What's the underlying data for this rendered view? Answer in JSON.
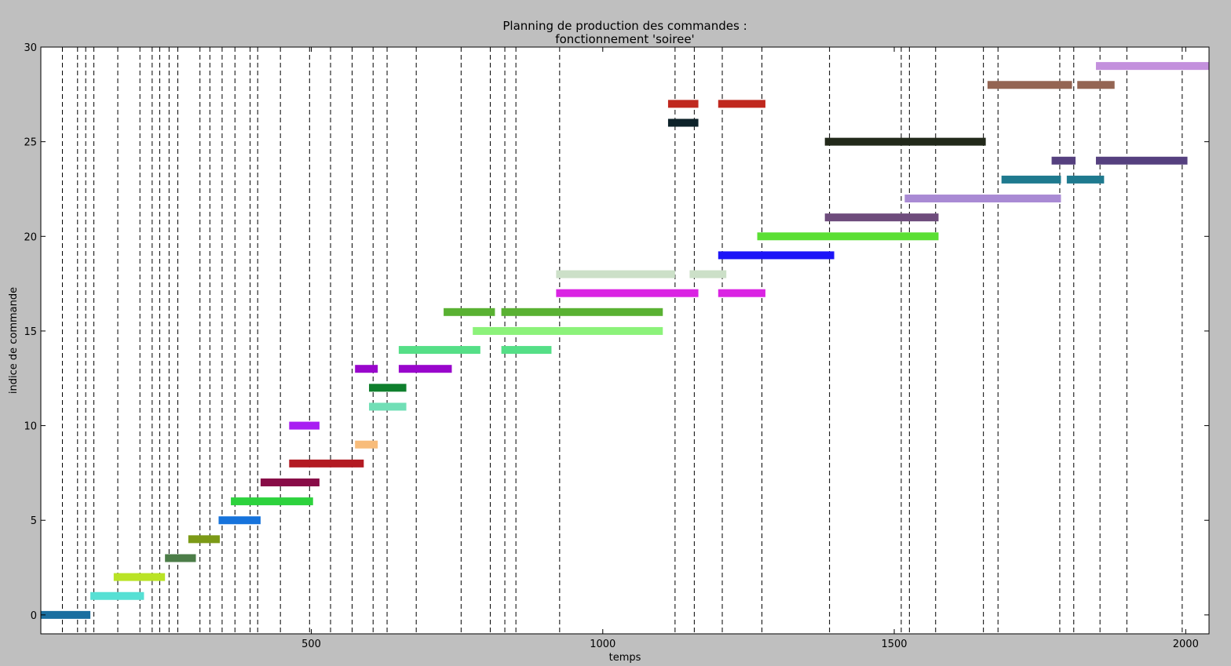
{
  "chart_data": {
    "type": "gantt",
    "title": [
      "Planning de production des commandes :",
      "fonctionnement 'soiree'"
    ],
    "xlabel": "temps",
    "ylabel": "indice de commande",
    "xlim": [
      36,
      2040
    ],
    "ylim": [
      -1,
      30
    ],
    "xticks": [
      500,
      1000,
      1500,
      2000
    ],
    "yticks": [
      0,
      5,
      10,
      15,
      20,
      25,
      30
    ],
    "grid": false,
    "vlines": [
      73,
      99,
      113,
      127,
      168,
      206,
      227,
      240,
      256,
      271,
      309,
      326,
      347,
      369,
      395,
      408,
      447,
      497,
      533,
      570,
      606,
      630,
      680,
      757,
      807,
      832,
      851,
      926,
      1124,
      1157,
      1205,
      1273,
      1389,
      1512,
      1526,
      1571,
      1653,
      1678,
      1784,
      1808,
      1853,
      1899,
      1994
    ],
    "tasks": [
      {
        "order": 0,
        "start": 36,
        "end": 121,
        "color": "#1a6fa0"
      },
      {
        "order": 1,
        "start": 121,
        "end": 213,
        "color": "#56e0d4"
      },
      {
        "order": 2,
        "start": 161,
        "end": 249,
        "color": "#b9e326"
      },
      {
        "order": 3,
        "start": 249,
        "end": 302,
        "color": "#4c7d48"
      },
      {
        "order": 4,
        "start": 289,
        "end": 343,
        "color": "#7c9a17"
      },
      {
        "order": 5,
        "start": 341,
        "end": 413,
        "color": "#1673dc"
      },
      {
        "order": 6,
        "start": 362,
        "end": 503,
        "color": "#2dd23d"
      },
      {
        "order": 7,
        "start": 413,
        "end": 514,
        "color": "#880c47"
      },
      {
        "order": 8,
        "start": 462,
        "end": 590,
        "color": "#b31a22"
      },
      {
        "order": 9,
        "start": 575,
        "end": 614,
        "color": "#f8bc7a"
      },
      {
        "order": 10,
        "start": 462,
        "end": 514,
        "color": "#a81ff2"
      },
      {
        "order": 11,
        "start": 599,
        "end": 663,
        "color": "#71dfb6"
      },
      {
        "order": 12,
        "start": 599,
        "end": 663,
        "color": "#0f7f2d"
      },
      {
        "order": 13,
        "start": 575,
        "end": 614,
        "color": "#9906cc"
      },
      {
        "order": 13,
        "start": 650,
        "end": 741,
        "color": "#9906cc"
      },
      {
        "order": 14,
        "start": 650,
        "end": 790,
        "color": "#55df87"
      },
      {
        "order": 14,
        "start": 826,
        "end": 912,
        "color": "#55df87"
      },
      {
        "order": 15,
        "start": 777,
        "end": 1103,
        "color": "#8cf27a"
      },
      {
        "order": 16,
        "start": 727,
        "end": 815,
        "color": "#59b132"
      },
      {
        "order": 16,
        "start": 826,
        "end": 1103,
        "color": "#59b132"
      },
      {
        "order": 17,
        "start": 920,
        "end": 1164,
        "color": "#da23e3"
      },
      {
        "order": 17,
        "start": 1198,
        "end": 1279,
        "color": "#da23e3"
      },
      {
        "order": 18,
        "start": 920,
        "end": 1124,
        "color": "#cce0c8"
      },
      {
        "order": 18,
        "start": 1149,
        "end": 1212,
        "color": "#cce0c8"
      },
      {
        "order": 19,
        "start": 1198,
        "end": 1397,
        "color": "#1c14f7"
      },
      {
        "order": 20,
        "start": 1265,
        "end": 1576,
        "color": "#5bdf34"
      },
      {
        "order": 21,
        "start": 1381,
        "end": 1576,
        "color": "#6e4c7c"
      },
      {
        "order": 22,
        "start": 1518,
        "end": 1786,
        "color": "#a98ad4"
      },
      {
        "order": 23,
        "start": 1684,
        "end": 1786,
        "color": "#1f7a8f"
      },
      {
        "order": 23,
        "start": 1796,
        "end": 1860,
        "color": "#1f7a8f"
      },
      {
        "order": 24,
        "start": 1770,
        "end": 1811,
        "color": "#55407f"
      },
      {
        "order": 24,
        "start": 1846,
        "end": 2003,
        "color": "#55407f"
      },
      {
        "order": 25,
        "start": 1381,
        "end": 1657,
        "color": "#22291a"
      },
      {
        "order": 26,
        "start": 1112,
        "end": 1164,
        "color": "#0d2229"
      },
      {
        "order": 27,
        "start": 1112,
        "end": 1164,
        "color": "#c0281e"
      },
      {
        "order": 27,
        "start": 1198,
        "end": 1279,
        "color": "#c0281e"
      },
      {
        "order": 28,
        "start": 1660,
        "end": 1805,
        "color": "#946553"
      },
      {
        "order": 28,
        "start": 1814,
        "end": 1878,
        "color": "#946553"
      },
      {
        "order": 29,
        "start": 1846,
        "end": 2040,
        "color": "#c390dd"
      }
    ]
  }
}
